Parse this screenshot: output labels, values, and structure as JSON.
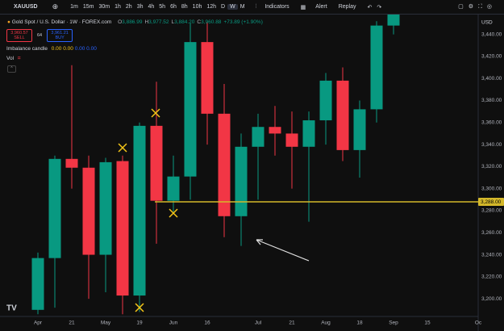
{
  "toolbar": {
    "symbol": "XAUUSD",
    "intervals": [
      "1m",
      "15m",
      "30m",
      "1h",
      "2h",
      "3h",
      "4h",
      "5h",
      "6h",
      "8h",
      "10h",
      "12h",
      "D",
      "W",
      "M"
    ],
    "active_interval": "W",
    "buttons": [
      "Indicators",
      "Alert",
      "Replay"
    ]
  },
  "legend": {
    "title": "Gold Spot / U.S. Dollar · 1W · FOREX.com",
    "ohlc": [
      "O",
      "3,886.99",
      "H",
      "3,977.52",
      "L",
      "3,884.20",
      "C",
      "3,960.88",
      "+73.89 (+1.90%)"
    ],
    "sell_price": "3,960.57",
    "sell": "SELL",
    "spread": "64",
    "buy_price": "3,961.21",
    "buy": "BUY",
    "indicator": "Imbalance candle",
    "indicator_values": [
      "0.00",
      "0.00",
      "0.00",
      "0.00"
    ],
    "volume": "Vol"
  },
  "chart_data": {
    "type": "candlestick",
    "currency": "USD",
    "categories": [
      "Apr",
      null,
      "21",
      null,
      "May",
      null,
      "19",
      null,
      "Jun",
      null,
      "16",
      null,
      null,
      "Jul",
      null,
      "21",
      null,
      "Aug",
      null,
      "18",
      null,
      "Sep",
      null,
      "15",
      null,
      null,
      "Oc"
    ],
    "open": [
      3190,
      3237,
      3327,
      3319,
      3240,
      3325,
      3203,
      3357,
      3289,
      3311,
      3433,
      3368,
      3275,
      3338,
      3356,
      3350,
      3338,
      3362,
      3398,
      3335,
      3372,
      3448,
      null,
      null,
      null,
      null,
      null
    ],
    "high": [
      3242,
      3330,
      3412,
      3330,
      3328,
      3330,
      3360,
      3397,
      3330,
      3450,
      3451,
      3395,
      3350,
      3368,
      3375,
      3370,
      3370,
      3405,
      3410,
      3380,
      3452,
      3470,
      null,
      null,
      null,
      null,
      null
    ],
    "low": [
      3186,
      3192,
      3300,
      3200,
      3206,
      3186,
      3188,
      3250,
      3279,
      3290,
      3340,
      3256,
      3248,
      3290,
      3330,
      3300,
      3270,
      3340,
      3325,
      3310,
      3360,
      3440,
      null,
      null,
      null,
      null,
      null
    ],
    "close": [
      3237,
      3327,
      3319,
      3240,
      3324,
      3203,
      3357,
      3289,
      3311,
      3433,
      3368,
      3275,
      3338,
      3356,
      3350,
      3338,
      3362,
      3398,
      3335,
      3372,
      3448,
      3462,
      null,
      null,
      null,
      null,
      null
    ],
    "up_color": "#089981",
    "down_color": "#f23645",
    "ylim": [
      3184,
      3458
    ],
    "yticks": [
      {
        "value": 3200,
        "label": "3,200.00"
      },
      {
        "value": 3220,
        "label": "3,220.00"
      },
      {
        "value": 3240,
        "label": "3,240.00"
      },
      {
        "value": 3260,
        "label": "3,260.00"
      },
      {
        "value": 3280,
        "label": "3,280.00"
      },
      {
        "value": 3300,
        "label": "3,300.00"
      },
      {
        "value": 3320,
        "label": "3,320.00"
      },
      {
        "value": 3340,
        "label": "3,340.00"
      },
      {
        "value": 3360,
        "label": "3,360.00"
      },
      {
        "value": 3380,
        "label": "3,380.00"
      },
      {
        "value": 3400,
        "label": "3,400.00"
      },
      {
        "value": 3420,
        "label": "3,420.00"
      },
      {
        "value": 3440,
        "label": "3,440.00"
      }
    ],
    "price_line": {
      "value": 3288,
      "label": "3,288.00",
      "color": "#d4b82a"
    },
    "grid": false
  }
}
